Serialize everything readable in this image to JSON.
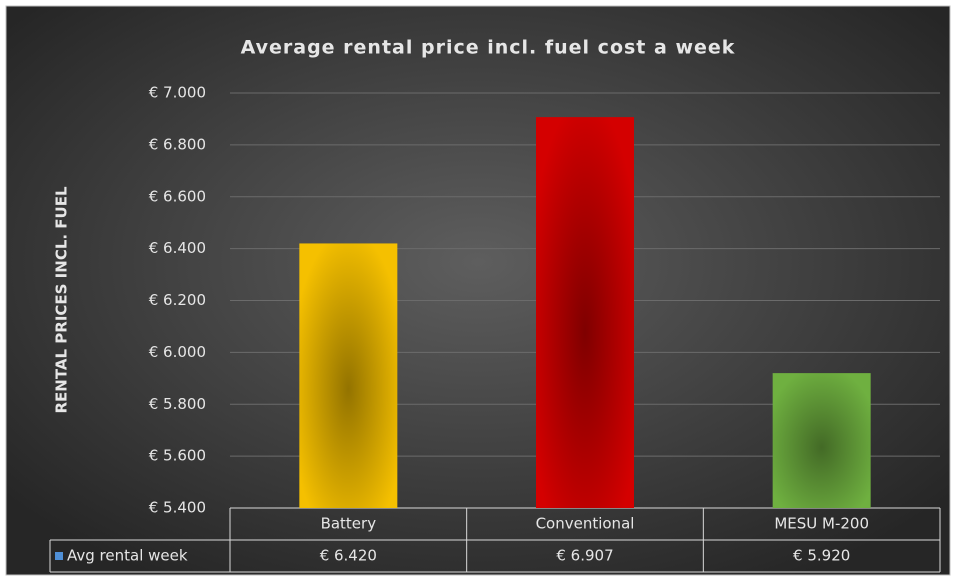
{
  "chart_data": {
    "type": "bar",
    "title": "Average rental price incl. fuel cost a week",
    "y_axis_label": "RENTAL PRICES INCL. FUEL",
    "categories": [
      "Battery",
      "Conventional",
      "MESU M-200"
    ],
    "series": [
      {
        "name": "Avg rental week",
        "color": "#4f8fd6",
        "colors": [
          "#f5c000",
          "#d40000",
          "#6fb040"
        ],
        "values": [
          6420,
          6907,
          5920
        ],
        "value_labels": [
          "€ 6.420",
          "€ 6.907",
          "€ 5.920"
        ]
      }
    ],
    "ylim": [
      5400,
      7000
    ],
    "yticks": [
      {
        "value": 5400,
        "label": "€ 5.400"
      },
      {
        "value": 5600,
        "label": "€ 5.600"
      },
      {
        "value": 5800,
        "label": "€ 5.800"
      },
      {
        "value": 6000,
        "label": "€ 6.000"
      },
      {
        "value": 6200,
        "label": "€ 6.200"
      },
      {
        "value": 6400,
        "label": "€ 6.400"
      },
      {
        "value": 6600,
        "label": "€ 6.600"
      },
      {
        "value": 6800,
        "label": "€ 6.800"
      },
      {
        "value": 7000,
        "label": "€ 7.000"
      }
    ],
    "grid": true
  }
}
